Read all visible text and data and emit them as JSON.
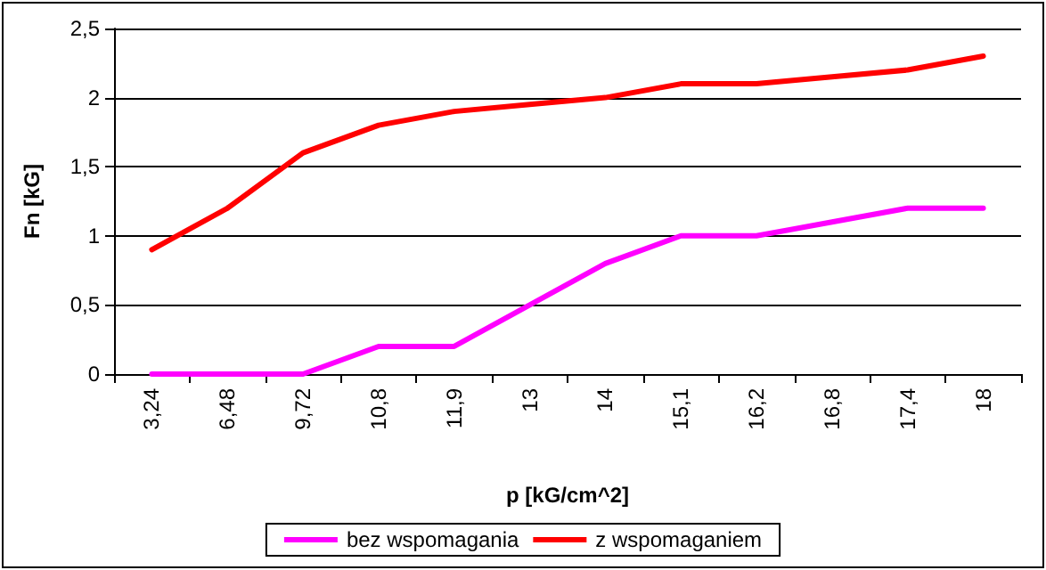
{
  "chart_data": {
    "type": "line",
    "xlabel": "p [kG/cm^2]",
    "ylabel": "Fn [kG]",
    "categories": [
      "3,24",
      "6,48",
      "9,72",
      "10,8",
      "11,9",
      "13",
      "14",
      "15,1",
      "16,2",
      "16,8",
      "17,4",
      "18"
    ],
    "series": [
      {
        "name": "bez wspomagania",
        "color": "#ff00ff",
        "values": [
          0,
          0,
          0,
          0.2,
          0.2,
          0.5,
          0.8,
          1.0,
          1.0,
          1.1,
          1.2,
          1.2
        ]
      },
      {
        "name": "z wspomaganiem",
        "color": "#ff0000",
        "values": [
          0.9,
          1.2,
          1.6,
          1.8,
          1.9,
          1.95,
          2.0,
          2.1,
          2.1,
          2.15,
          2.2,
          2.3
        ]
      }
    ],
    "ylim": [
      0,
      2.5
    ],
    "yticks": [
      0,
      {
        "value": 0.5,
        "label": "0,5"
      },
      1,
      {
        "value": 1.5,
        "label": "1,5"
      },
      2,
      {
        "value": 2.5,
        "label": "2,5"
      }
    ],
    "grid": "y",
    "legend": "bottom",
    "marker": "none",
    "line_style": "solid"
  }
}
